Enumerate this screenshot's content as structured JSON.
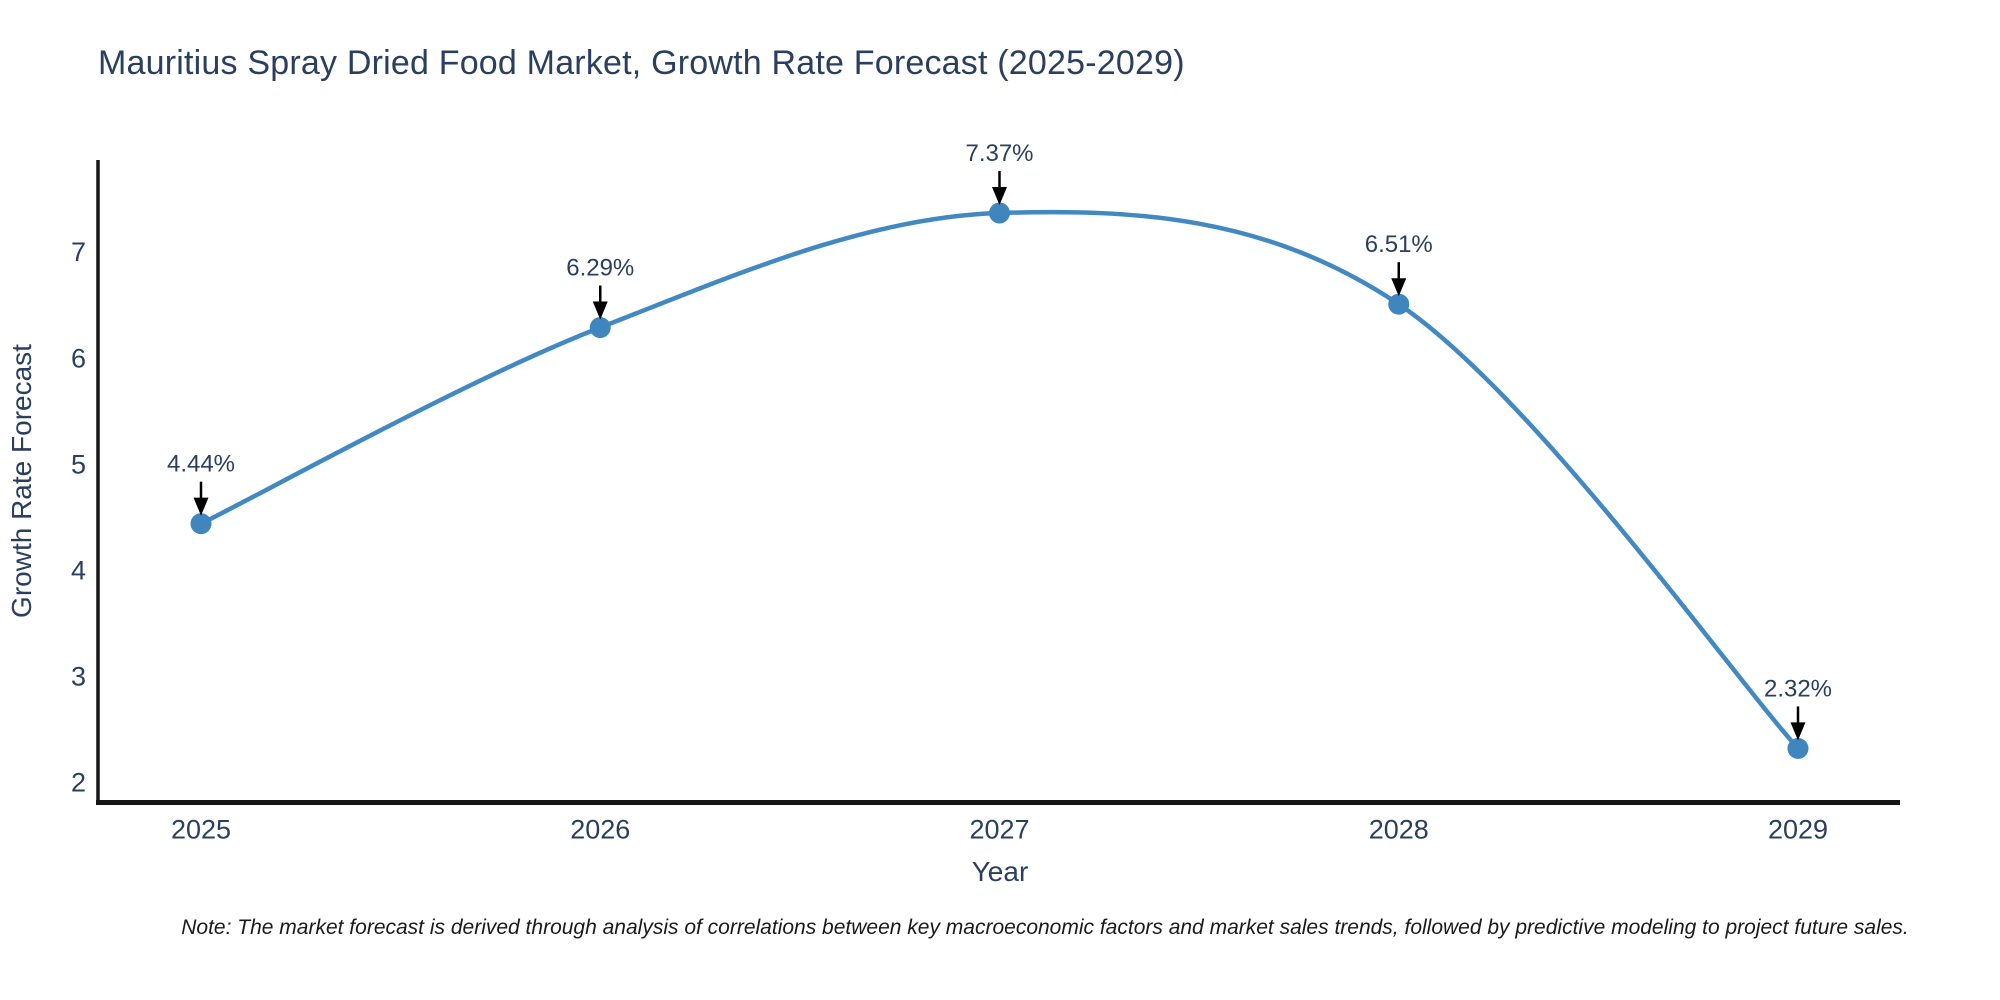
{
  "title": "Mauritius Spray Dried Food Market, Growth Rate Forecast (2025-2029)",
  "note": "Note: The market forecast is derived through analysis of correlations between key macroeconomic factors and market sales trends, followed by predictive modeling to project future sales.",
  "chart_data": {
    "type": "line",
    "title": "Mauritius Spray Dried Food Market, Growth Rate Forecast (2025-2029)",
    "x": [
      2025,
      2026,
      2027,
      2028,
      2029
    ],
    "series": [
      {
        "name": "Growth Rate Forecast",
        "values": [
          4.44,
          6.29,
          7.37,
          6.51,
          2.32
        ],
        "point_labels": [
          "4.44%",
          "6.29%",
          "7.37%",
          "6.51%",
          "2.32%"
        ]
      }
    ],
    "xlabel": "Year",
    "ylabel": "Growth Rate Forecast",
    "xticks": [
      "2025",
      "2026",
      "2027",
      "2028",
      "2029"
    ],
    "yticks": [
      2,
      3,
      4,
      5,
      6,
      7
    ],
    "ylim": [
      1.81,
      7.87
    ],
    "line_shape": "spline",
    "grid": false,
    "legend_visible": false,
    "annotations_arrow": "down",
    "colors": {
      "line": "#4289c2",
      "marker": "#3f86bf",
      "arrow": "#000000",
      "annotation_text": "#2a3f5f",
      "tick_label": "#2a3f5f",
      "axis_line": "#161616",
      "title_text": "#2a3f5f"
    }
  }
}
